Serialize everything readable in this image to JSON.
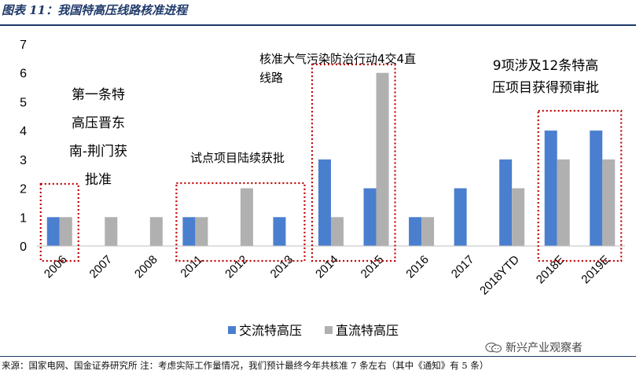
{
  "title": "图表 11：我国特高压线路核准进程",
  "footer": "来源：国家电网、国金证券研究所 注：考虑实际工作量情况，我们预计最终今年共核准 7 条左右（其中《通知》有 5 条）",
  "watermark": "新兴产业观察者",
  "chart_data": {
    "type": "bar",
    "categories": [
      "2006",
      "2007",
      "2008",
      "2011",
      "2012",
      "2013",
      "2014",
      "2015",
      "2016",
      "2017",
      "2018YTD",
      "2018E",
      "2019E"
    ],
    "series": [
      {
        "name": "交流特高压",
        "color": "#4a7fcf",
        "values": [
          1,
          0,
          0,
          1,
          0,
          1,
          3,
          2,
          1,
          2,
          3,
          4,
          4
        ]
      },
      {
        "name": "直流特高压",
        "color": "#b0b0b0",
        "values": [
          1,
          1,
          1,
          1,
          2,
          0,
          1,
          6,
          1,
          0,
          2,
          3,
          3
        ]
      }
    ],
    "ylim": [
      0,
      7
    ],
    "yticks": [
      "0",
      "1",
      "2",
      "3",
      "4",
      "5",
      "6",
      "7"
    ],
    "grid": false,
    "legend_position": "bottom",
    "highlight_color": "#c00000",
    "annotations": {
      "first_line": [
        "第一条特",
        "高压晋东",
        "南-荆门获",
        "批准"
      ],
      "pilot": "试点项目陆续获批",
      "air_plan": [
        "核准大气污染防治行动4交4直",
        "线路"
      ],
      "nine_projects": [
        "9项涉及12条特高",
        "压项目获得预审批"
      ]
    }
  }
}
